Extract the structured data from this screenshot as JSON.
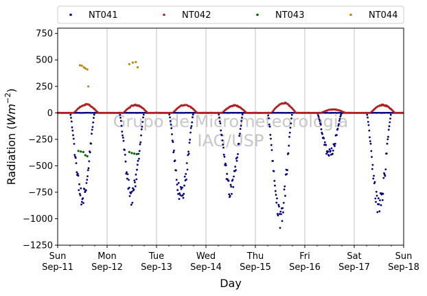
{
  "chart_data": {
    "type": "scatter",
    "xlabel": "Day",
    "ylabel": "Radiation (",
    "ylabel_units": "Wm",
    "ylabel_exp": "−2",
    "ylabel_close": ")",
    "ylim": [
      -1250,
      800
    ],
    "xlim_days": [
      0,
      7
    ],
    "grid": "vertical",
    "legend_placement": "top",
    "watermark": [
      "Grupo de Micrometeorologia",
      "IAG/USP"
    ],
    "y_ticks": [
      {
        "value": -1250,
        "label": "−1250"
      },
      {
        "value": -1000,
        "label": "−1000"
      },
      {
        "value": -750,
        "label": "−750"
      },
      {
        "value": -500,
        "label": "−500"
      },
      {
        "value": -250,
        "label": "−250"
      },
      {
        "value": 0,
        "label": "0"
      },
      {
        "value": 250,
        "label": "250"
      },
      {
        "value": 500,
        "label": "500"
      },
      {
        "value": 750,
        "label": "750"
      }
    ],
    "x_ticks": [
      {
        "day": 0,
        "weekday": "Sun",
        "date": "Sep-11"
      },
      {
        "day": 1,
        "weekday": "Mon",
        "date": "Sep-12"
      },
      {
        "day": 2,
        "weekday": "Tue",
        "date": "Sep-13"
      },
      {
        "day": 3,
        "weekday": "Wed",
        "date": "Sep-14"
      },
      {
        "day": 4,
        "weekday": "Thu",
        "date": "Sep-15"
      },
      {
        "day": 5,
        "weekday": "Fri",
        "date": "Sep-16"
      },
      {
        "day": 6,
        "weekday": "Sat",
        "date": "Sep-17"
      },
      {
        "day": 7,
        "weekday": "Sun",
        "date": "Sep-18"
      }
    ],
    "series": [
      {
        "name": "NT041",
        "color": "#000080",
        "daily_minimum": [
          -900,
          -860,
          -870,
          -800,
          -1080,
          -430,
          -950
        ]
      },
      {
        "name": "NT042",
        "color": "#b22222",
        "daily_peak": [
          85,
          80,
          80,
          75,
          100,
          35,
          80
        ]
      },
      {
        "name": "NT043",
        "color": "#006400",
        "points": [
          [
            0.42,
            -360
          ],
          [
            0.47,
            -365
          ],
          [
            0.52,
            -370
          ],
          [
            0.56,
            -400
          ],
          [
            0.6,
            -410
          ],
          [
            1.45,
            -370
          ],
          [
            1.5,
            -380
          ],
          [
            1.55,
            -385
          ],
          [
            1.6,
            -390
          ]
        ]
      },
      {
        "name": "NT044",
        "color": "#b8860b",
        "points": [
          [
            0.45,
            450
          ],
          [
            0.49,
            445
          ],
          [
            0.53,
            430
          ],
          [
            0.56,
            420
          ],
          [
            0.6,
            410
          ],
          [
            0.62,
            250
          ],
          [
            1.45,
            460
          ],
          [
            1.52,
            475
          ],
          [
            1.58,
            480
          ],
          [
            1.62,
            430
          ]
        ]
      }
    ]
  }
}
